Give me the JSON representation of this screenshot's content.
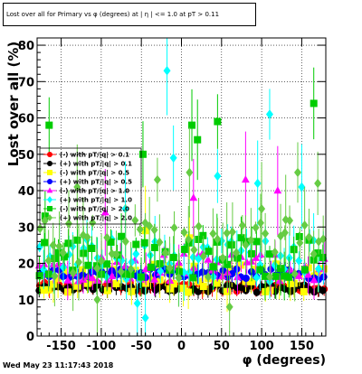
{
  "chart_data": {
    "type": "scatter",
    "title": "Lost over all for Primary vs φ (degrees) at | η | <= 1.0 at pT > 0.11",
    "xlabel": "φ (degrees)",
    "ylabel": "Lost over all (%)",
    "xlim": [
      -180,
      180
    ],
    "ylim": [
      0,
      82
    ],
    "xticks": [
      "-150",
      "-100",
      "-50",
      "0",
      "50",
      "100",
      "150"
    ],
    "yticks": [
      "0",
      "10",
      "20",
      "30",
      "40",
      "50",
      "60",
      "70",
      "80"
    ],
    "grid": true,
    "legend_position": "left",
    "series": [
      {
        "name": "(-) with pT/|q| > 0.1",
        "color": "#ff0000",
        "marker": "circle",
        "y_center": 13.5,
        "y_spread": 1.2,
        "outliers": []
      },
      {
        "name": "(+) with pT/|q| > 0.1",
        "color": "#000000",
        "marker": "circle",
        "y_center": 13.0,
        "y_spread": 1.0,
        "outliers": []
      },
      {
        "name": "(-) with pT/|q| > 0.5",
        "color": "#ffff00",
        "marker": "square",
        "y_center": 16.0,
        "y_spread": 4.0,
        "outliers": [
          [
            -45,
            29
          ],
          [
            10,
            27
          ]
        ]
      },
      {
        "name": "(+) with pT/|q| > 0.5",
        "color": "#0000ff",
        "marker": "circle",
        "y_center": 17.0,
        "y_spread": 1.5,
        "outliers": []
      },
      {
        "name": "(-) with pT/|q| > 1.0",
        "color": "#ff00ff",
        "marker": "triangle",
        "y_center": 19.0,
        "y_spread": 4.0,
        "outliers": [
          [
            15,
            38
          ],
          [
            80,
            43
          ],
          [
            -95,
            34
          ],
          [
            120,
            40
          ]
        ]
      },
      {
        "name": "(+) with pT/|q| > 1.0",
        "color": "#00ffff",
        "marker": "diamond",
        "y_center": 21.0,
        "y_spread": 6.0,
        "outliers": [
          [
            -18,
            73
          ],
          [
            -10,
            49
          ],
          [
            45,
            44
          ],
          [
            110,
            61
          ],
          [
            -55,
            9
          ],
          [
            150,
            41
          ],
          [
            -45,
            5
          ],
          [
            95,
            42
          ],
          [
            -70,
            35
          ]
        ]
      },
      {
        "name": "(-) with pT/|q| > 2.0",
        "color": "#00cc00",
        "marker": "square",
        "y_center": 22.0,
        "y_spread": 6.0,
        "outliers": [
          [
            -165,
            58
          ],
          [
            -48,
            50
          ],
          [
            13,
            58
          ],
          [
            45,
            59
          ],
          [
            165,
            64
          ],
          [
            20,
            54
          ],
          [
            -170,
            33
          ]
        ]
      },
      {
        "name": "(+) with pT/|q| > 2.0",
        "color": "#66cc44",
        "marker": "diamond",
        "y_center": 24.0,
        "y_spread": 8.0,
        "outliers": [
          [
            145,
            45
          ],
          [
            100,
            35
          ],
          [
            60,
            8
          ],
          [
            -105,
            10
          ],
          [
            10,
            45
          ],
          [
            130,
            32
          ],
          [
            -130,
            41
          ],
          [
            170,
            42
          ],
          [
            -30,
            43
          ],
          [
            -160,
            25
          ]
        ]
      }
    ]
  },
  "title_box": "Lost over all for Primary vs φ (degrees) at | η | <= 1.0 at pT > 0.11",
  "timestamp": "Wed May 23 11:17:43 2018"
}
